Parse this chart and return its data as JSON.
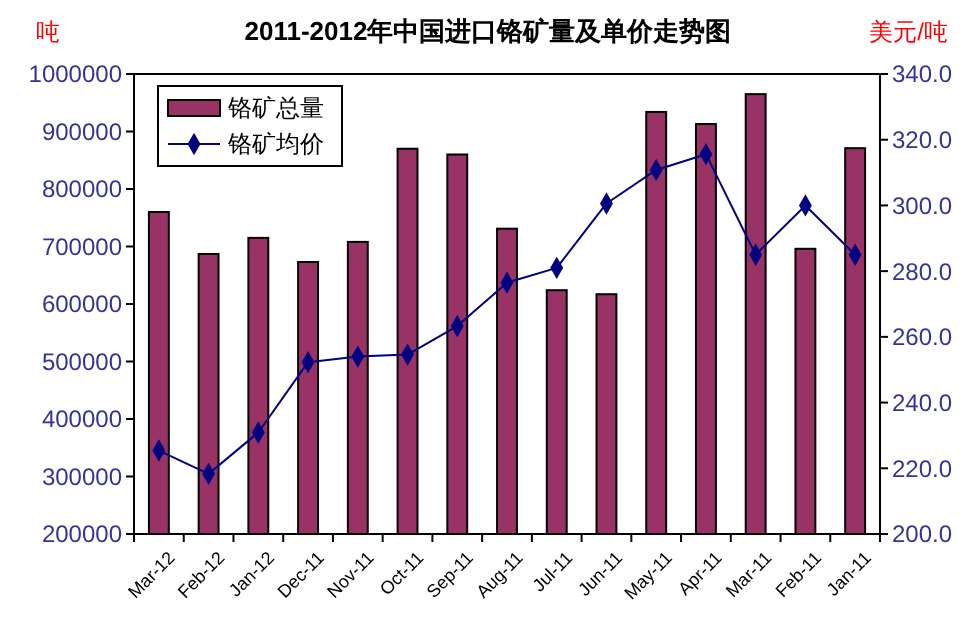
{
  "chart_data": {
    "type": "bar",
    "title": "2011-2012年中国进口铬矿量及单价走势图",
    "ylabel": "吨",
    "y2label": "美元/吨",
    "categories": [
      "Mar-12",
      "Feb-12",
      "Jan-12",
      "Dec-11",
      "Nov-11",
      "Oct-11",
      "Sep-11",
      "Aug-11",
      "Jul-11",
      "Jun-11",
      "May-11",
      "Apr-11",
      "Mar-11",
      "Feb-11",
      "Jan-11"
    ],
    "series": [
      {
        "name": "铬矿总量",
        "color": "#993366",
        "values": [
          760000,
          687000,
          715000,
          673000,
          708000,
          870000,
          860000,
          731000,
          624000,
          617000,
          934000,
          913000,
          965000,
          696000,
          871000
        ]
      },
      {
        "name": "铬矿均价",
        "type": "line",
        "axis": "y2",
        "color": "#000080",
        "marker": "diamond",
        "values": [
          225.4,
          218.3,
          230.9,
          252.3,
          254.0,
          254.6,
          263.3,
          276.5,
          281.0,
          300.6,
          310.8,
          315.6,
          285.0,
          300.0,
          285.0
        ]
      }
    ],
    "ylim": [
      200000,
      1000000
    ],
    "yticks": [
      200000,
      300000,
      400000,
      500000,
      600000,
      700000,
      800000,
      900000,
      1000000
    ],
    "y2lim": [
      200,
      340
    ],
    "y2ticks": [
      {
        "value": 200,
        "label": "200.0"
      },
      {
        "value": 220,
        "label": "220.0"
      },
      {
        "value": 240,
        "label": "240.0"
      },
      {
        "value": 260,
        "label": "260.0"
      },
      {
        "value": 280,
        "label": "280.0"
      },
      {
        "value": 300,
        "label": "300.0"
      },
      {
        "value": 320,
        "label": "320.0"
      },
      {
        "value": 340,
        "label": "340.0"
      }
    ],
    "legend": "top left",
    "grid": false
  }
}
